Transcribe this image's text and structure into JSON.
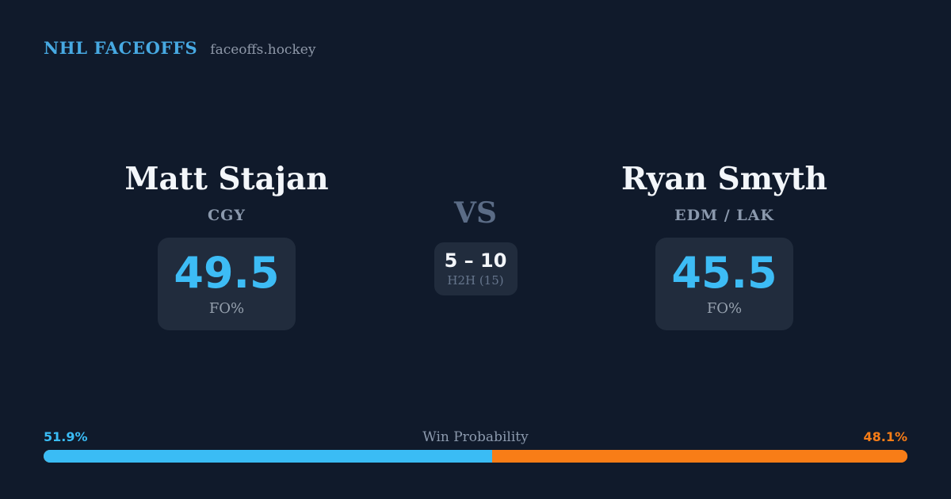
{
  "header": {
    "brand": "NHL FACEOFFS",
    "site": "faceoffs.hockey"
  },
  "matchup": {
    "player1": {
      "name": "Matt Stajan",
      "team": "CGY",
      "stat_value": "49.5",
      "stat_label": "FO%"
    },
    "vs_label": "VS",
    "h2h": {
      "record": "5 – 10",
      "label": "H2H (15)"
    },
    "player2": {
      "name": "Ryan Smyth",
      "team": "EDM / LAK",
      "stat_value": "45.5",
      "stat_label": "FO%"
    }
  },
  "win_probability": {
    "title": "Win Probability",
    "left_pct": "51.9%",
    "right_pct": "48.1%",
    "left_value": 51.9,
    "right_value": 48.1
  },
  "colors": {
    "background": "#101a2b",
    "card": "#212c3d",
    "brand_blue": "#47a9e2",
    "stat_blue": "#3dbcf5",
    "bar_blue": "#3abcf5",
    "bar_orange": "#f87d17",
    "text_primary": "#f3f6fa",
    "text_secondary": "#8b99ad",
    "text_muted": "#5b6c86"
  }
}
